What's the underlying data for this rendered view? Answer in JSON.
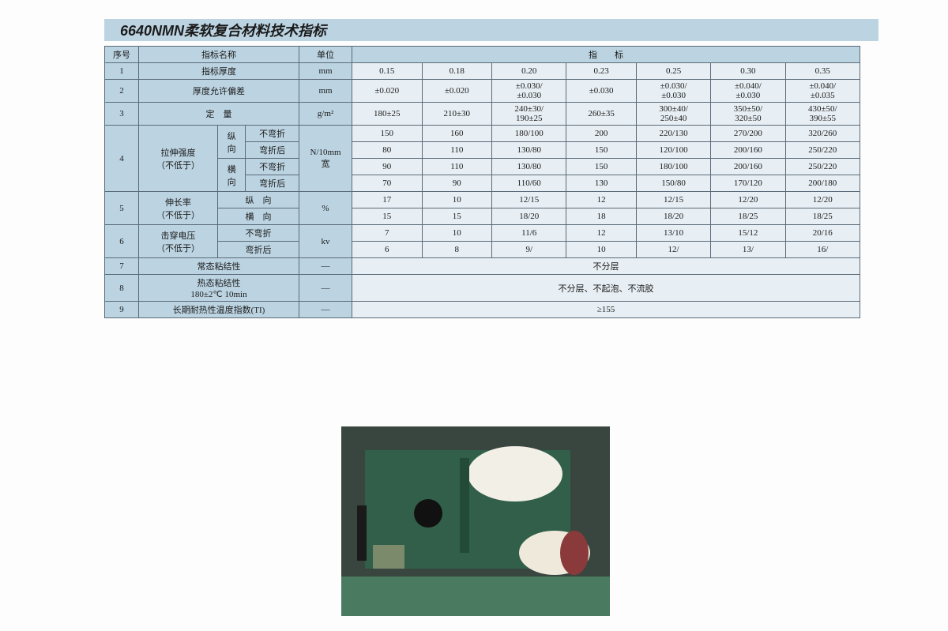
{
  "title": "6640NMN柔软复合材料技术指标",
  "colors": {
    "band": "#bcd4e2",
    "border": "#5a6a78",
    "cell_bg": "#e8eff4",
    "header_bg": "#bcd4e2",
    "text": "#1a1a1a",
    "photo_frame": "#2e5a4a"
  },
  "header": {
    "seq": "序号",
    "name": "指标名称",
    "unit": "单位",
    "spec": "指　　标"
  },
  "rows": {
    "r1": {
      "no": "1",
      "name": "指标厚度",
      "unit": "mm",
      "v": [
        "0.15",
        "0.18",
        "0.20",
        "0.23",
        "0.25",
        "0.30",
        "0.35"
      ]
    },
    "r2": {
      "no": "2",
      "name": "厚度允许偏差",
      "unit": "mm",
      "v": [
        "±0.020",
        "±0.020",
        "±0.030/\n±0.030",
        "±0.030",
        "±0.030/\n±0.030",
        "±0.040/\n±0.030",
        "±0.040/\n±0.035"
      ]
    },
    "r3": {
      "no": "3",
      "name": "定　量",
      "unit": "g/m²",
      "v": [
        "180±25",
        "210±30",
        "240±30/\n190±25",
        "260±35",
        "300±40/\n250±40",
        "350±50/\n320±50",
        "430±50/\n390±55"
      ]
    },
    "r4": {
      "no": "4",
      "name": "拉伸强度\n（不低于）",
      "unit": "N/10mm\n宽",
      "long_v": "纵\n向",
      "long_h": "横\n向",
      "nobend": "不弯折",
      "bent": "弯折后",
      "a": [
        "150",
        "160",
        "180/100",
        "200",
        "220/130",
        "270/200",
        "320/260"
      ],
      "b": [
        "80",
        "110",
        "130/80",
        "150",
        "120/100",
        "200/160",
        "250/220"
      ],
      "c": [
        "90",
        "110",
        "130/80",
        "150",
        "180/100",
        "200/160",
        "250/220"
      ],
      "d": [
        "70",
        "90",
        "110/60",
        "130",
        "150/80",
        "170/120",
        "200/180"
      ]
    },
    "r5": {
      "no": "5",
      "name": "伸长率\n（不低于）",
      "unit": "%",
      "long_v": "纵　向",
      "long_h": "横　向",
      "a": [
        "17",
        "10",
        "12/15",
        "12",
        "12/15",
        "12/20",
        "12/20"
      ],
      "b": [
        "15",
        "15",
        "18/20",
        "18",
        "18/20",
        "18/25",
        "18/25"
      ]
    },
    "r6": {
      "no": "6",
      "name": "击穿电压\n（不低于）",
      "unit": "kv",
      "nobend": "不弯折",
      "bent": "弯折后",
      "a": [
        "7",
        "10",
        "11/6",
        "12",
        "13/10",
        "15/12",
        "20/16"
      ],
      "b": [
        "6",
        "8",
        "9/",
        "10",
        "12/",
        "13/",
        "16/"
      ]
    },
    "r7": {
      "no": "7",
      "name": "常态粘结性",
      "unit": "—",
      "merged": "不分层"
    },
    "r8": {
      "no": "8",
      "name": "热态粘结性\n180±2℃ 10min",
      "unit": "—",
      "merged": "不分层、不起泡、不流胶"
    },
    "r9": {
      "no": "9",
      "name": "长期耐热性温度指数(TI)",
      "unit": "—",
      "merged": "≥155"
    }
  }
}
